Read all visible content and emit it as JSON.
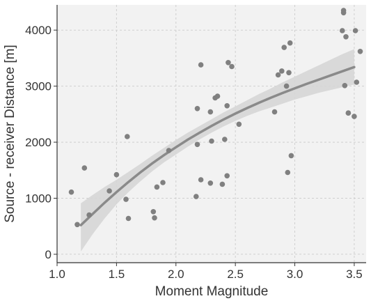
{
  "chart_data": {
    "type": "scatter",
    "title": "",
    "xlabel": "Moment Magnitude",
    "ylabel": "Source - receiver Distance [m]",
    "xlim": [
      1.0,
      3.6
    ],
    "ylim": [
      -150,
      4450
    ],
    "xticks": [
      1.0,
      1.5,
      2.0,
      2.5,
      3.0,
      3.5
    ],
    "xtick_labels": [
      "1.0",
      "1.5",
      "2.0",
      "2.5",
      "3.0",
      "3.5"
    ],
    "yticks": [
      0,
      1000,
      2000,
      3000,
      4000
    ],
    "ytick_labels": [
      "0",
      "1000",
      "2000",
      "3000",
      "4000"
    ],
    "grid": true,
    "background_color": "#f2f2f2",
    "point_color": "#808080",
    "fit_line_color": "#8a8a8a",
    "band_color": "#d6d6d6",
    "scatter": {
      "x": [
        1.12,
        1.17,
        1.23,
        1.27,
        1.44,
        1.5,
        1.58,
        1.59,
        1.6,
        1.81,
        1.82,
        1.84,
        1.89,
        1.94,
        2.17,
        2.18,
        2.18,
        2.21,
        2.21,
        2.29,
        2.29,
        2.3,
        2.33,
        2.35,
        2.39,
        2.41,
        2.43,
        2.43,
        2.44,
        2.47,
        2.53,
        2.83,
        2.86,
        2.89,
        2.91,
        2.93,
        2.94,
        2.95,
        2.96,
        2.97,
        3.4,
        3.41,
        3.41,
        3.42,
        3.43,
        3.45,
        3.45,
        3.5,
        3.51,
        3.52,
        3.55
      ],
      "y": [
        1110,
        530,
        1540,
        700,
        1130,
        1420,
        980,
        2100,
        640,
        760,
        650,
        1200,
        1280,
        1850,
        1030,
        1960,
        2600,
        1330,
        3380,
        2540,
        1270,
        2020,
        2790,
        2820,
        1250,
        2050,
        1400,
        2650,
        3420,
        3350,
        2320,
        2540,
        3200,
        3270,
        3690,
        3000,
        1460,
        3240,
        3770,
        1760,
        3990,
        4310,
        4350,
        3010,
        3880,
        2520,
        2520,
        2460,
        3990,
        3070,
        3620
      ]
    },
    "fit": {
      "label": "",
      "x": [
        1.2,
        1.3,
        1.4,
        1.5,
        1.6,
        1.7,
        1.8,
        1.9,
        2.0,
        2.1,
        2.2,
        2.3,
        2.4,
        2.5,
        2.6,
        2.7,
        2.8,
        2.9,
        3.0,
        3.1,
        3.2,
        3.3,
        3.4,
        3.5
      ],
      "y": [
        520,
        720,
        920,
        1110,
        1290,
        1460,
        1620,
        1770,
        1910,
        2045,
        2170,
        2290,
        2405,
        2510,
        2610,
        2705,
        2795,
        2880,
        2960,
        3040,
        3115,
        3190,
        3265,
        3340
      ],
      "lower": [
        50,
        360,
        640,
        890,
        1110,
        1300,
        1480,
        1640,
        1780,
        1920,
        2050,
        2170,
        2280,
        2380,
        2470,
        2550,
        2620,
        2690,
        2760,
        2820,
        2880,
        2930,
        2980,
        3030
      ],
      "upper": [
        910,
        1060,
        1200,
        1330,
        1470,
        1610,
        1760,
        1900,
        2040,
        2170,
        2290,
        2410,
        2530,
        2640,
        2750,
        2860,
        2960,
        3070,
        3170,
        3270,
        3370,
        3470,
        3570,
        3660
      ]
    }
  }
}
